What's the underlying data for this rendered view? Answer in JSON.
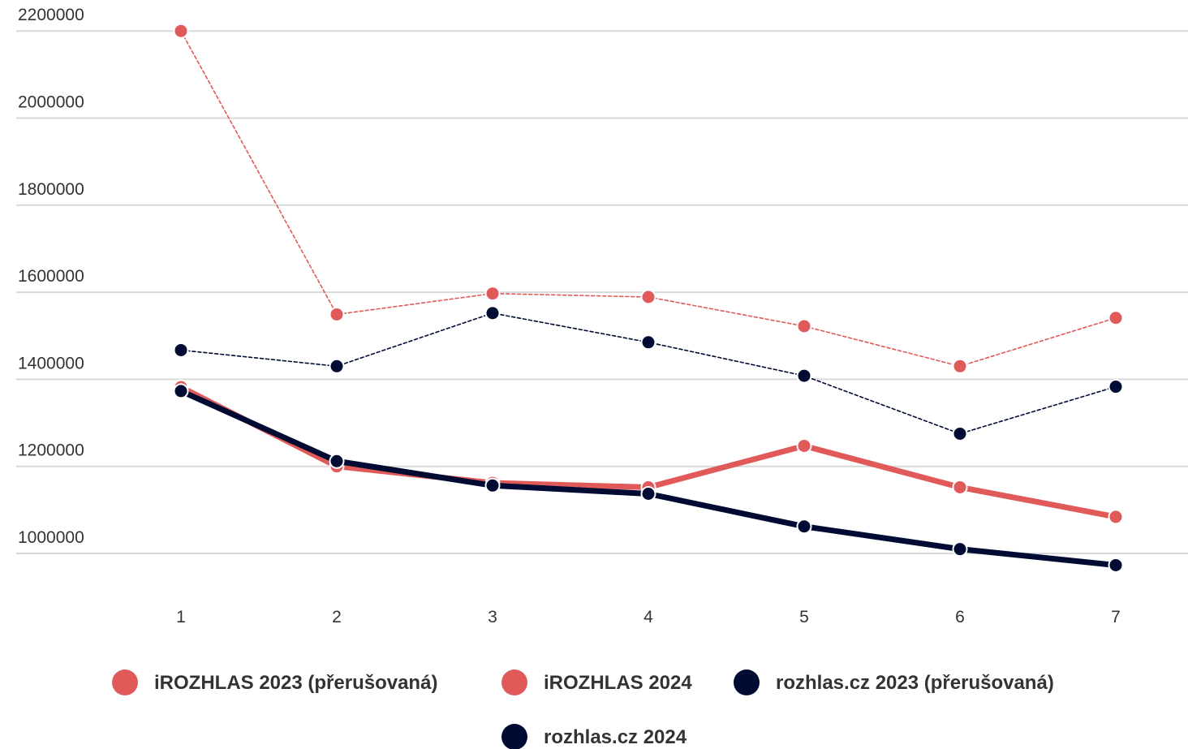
{
  "chart_data": {
    "type": "line",
    "title": "",
    "xlabel": "",
    "ylabel": "",
    "x": [
      1,
      2,
      3,
      4,
      5,
      6,
      7
    ],
    "ylim": [
      900000,
      2200000
    ],
    "yticks": [
      1000000,
      1200000,
      1400000,
      1600000,
      1800000,
      2000000,
      2200000
    ],
    "grid": true,
    "legend_position": "bottom",
    "series": [
      {
        "name": "iROZHLAS 2023 (přerušovaná)",
        "color": "#e05a5a",
        "style": "dashed",
        "values": [
          2200000,
          1549000,
          1597000,
          1589000,
          1522000,
          1430000,
          1541000
        ]
      },
      {
        "name": "iROZHLAS 2024",
        "color": "#e05a5a",
        "style": "solid",
        "values": [
          1382000,
          1200000,
          1162000,
          1152000,
          1247000,
          1152000,
          1084000
        ]
      },
      {
        "name": "rozhlas.cz 2023 (přerušovaná)",
        "color": "#000b33",
        "style": "dashed",
        "values": [
          1467000,
          1430000,
          1552000,
          1485000,
          1408000,
          1275000,
          1383000
        ]
      },
      {
        "name": "rozhlas.cz 2024",
        "color": "#000b33",
        "style": "solid",
        "values": [
          1373000,
          1212000,
          1156000,
          1137000,
          1062000,
          1010000,
          973000
        ]
      }
    ]
  }
}
